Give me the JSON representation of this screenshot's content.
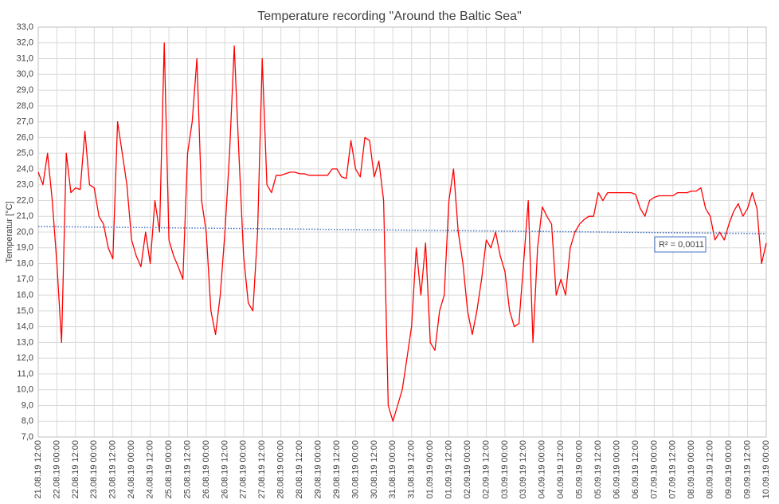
{
  "chart_data": {
    "type": "line",
    "title": "Temperature recording \"Around the Baltic Sea\"",
    "ylabel": "Temperatur [°C]",
    "grid": true,
    "xlim": [
      "21.08.19 12:00",
      "10.09.19 00:00"
    ],
    "xticks": [
      "21.08.19 12:00",
      "22.08.19 00:00",
      "22.08.19 12:00",
      "23.08.19 00:00",
      "23.08.19 12:00",
      "24.08.19 00:00",
      "24.08.19 12:00",
      "25.08.19 00:00",
      "25.08.19 12:00",
      "26.08.19 00:00",
      "26.08.19 12:00",
      "27.08.19 00:00",
      "27.08.19 12:00",
      "28.08.19 00:00",
      "28.08.19 12:00",
      "29.08.19 00:00",
      "29.08.19 12:00",
      "30.08.19 00:00",
      "30.08.19 12:00",
      "31.08.19 00:00",
      "31.08.19 12:00",
      "01.09.19 00:00",
      "01.09.19 12:00",
      "02.09.19 00:00",
      "02.09.19 12:00",
      "03.09.19 00:00",
      "03.09.19 12:00",
      "04.09.19 00:00",
      "04.09.19 12:00",
      "05.09.19 00:00",
      "05.09.19 12:00",
      "06.09.19 00:00",
      "06.09.19 12:00",
      "07.09.19 00:00",
      "07.09.19 12:00",
      "08.09.19 00:00",
      "08.09.19 12:00",
      "09.09.19 00:00",
      "09.09.19 12:00",
      "10.09.19 00:00"
    ],
    "ylim": [
      7,
      33
    ],
    "yticks": [
      {
        "value": 7,
        "label": "7,0"
      },
      {
        "value": 8,
        "label": "8,0"
      },
      {
        "value": 9,
        "label": "9,0"
      },
      {
        "value": 10,
        "label": "10,0"
      },
      {
        "value": 11,
        "label": "11,0"
      },
      {
        "value": 12,
        "label": "12,0"
      },
      {
        "value": 13,
        "label": "13,0"
      },
      {
        "value": 14,
        "label": "14,0"
      },
      {
        "value": 15,
        "label": "15,0"
      },
      {
        "value": 16,
        "label": "16,0"
      },
      {
        "value": 17,
        "label": "17,0"
      },
      {
        "value": 18,
        "label": "18,0"
      },
      {
        "value": 19,
        "label": "19,0"
      },
      {
        "value": 20,
        "label": "20,0"
      },
      {
        "value": 21,
        "label": "21,0"
      },
      {
        "value": 22,
        "label": "22,0"
      },
      {
        "value": 23,
        "label": "23,0"
      },
      {
        "value": 24,
        "label": "24,0"
      },
      {
        "value": 25,
        "label": "25,0"
      },
      {
        "value": 26,
        "label": "26,0"
      },
      {
        "value": 27,
        "label": "27,0"
      },
      {
        "value": 28,
        "label": "28,0"
      },
      {
        "value": 29,
        "label": "29,0"
      },
      {
        "value": 30,
        "label": "30,0"
      },
      {
        "value": 31,
        "label": "31,0"
      },
      {
        "value": 32,
        "label": "32,0"
      },
      {
        "value": 33,
        "label": "33,0"
      }
    ],
    "x": [
      "21.08.19 12:00",
      "21.08.19 15:00",
      "21.08.19 18:00",
      "21.08.19 21:00",
      "22.08.19 00:00",
      "22.08.19 03:00",
      "22.08.19 06:00",
      "22.08.19 09:00",
      "22.08.19 12:00",
      "22.08.19 15:00",
      "22.08.19 18:00",
      "22.08.19 21:00",
      "23.08.19 00:00",
      "23.08.19 03:00",
      "23.08.19 06:00",
      "23.08.19 09:00",
      "23.08.19 12:00",
      "23.08.19 15:00",
      "23.08.19 18:00",
      "23.08.19 21:00",
      "24.08.19 00:00",
      "24.08.19 03:00",
      "24.08.19 06:00",
      "24.08.19 09:00",
      "24.08.19 12:00",
      "24.08.19 15:00",
      "24.08.19 18:00",
      "24.08.19 21:00",
      "25.08.19 00:00",
      "25.08.19 03:00",
      "25.08.19 06:00",
      "25.08.19 09:00",
      "25.08.19 12:00",
      "25.08.19 15:00",
      "25.08.19 18:00",
      "25.08.19 21:00",
      "26.08.19 00:00",
      "26.08.19 03:00",
      "26.08.19 06:00",
      "26.08.19 09:00",
      "26.08.19 12:00",
      "26.08.19 15:00",
      "26.08.19 18:00",
      "26.08.19 21:00",
      "27.08.19 00:00",
      "27.08.19 03:00",
      "27.08.19 06:00",
      "27.08.19 09:00",
      "27.08.19 12:00",
      "27.08.19 15:00",
      "27.08.19 18:00",
      "27.08.19 21:00",
      "28.08.19 00:00",
      "28.08.19 03:00",
      "28.08.19 06:00",
      "28.08.19 09:00",
      "28.08.19 12:00",
      "28.08.19 15:00",
      "28.08.19 18:00",
      "28.08.19 21:00",
      "29.08.19 00:00",
      "29.08.19 03:00",
      "29.08.19 06:00",
      "29.08.19 09:00",
      "29.08.19 12:00",
      "29.08.19 15:00",
      "29.08.19 18:00",
      "29.08.19 21:00",
      "30.08.19 00:00",
      "30.08.19 03:00",
      "30.08.19 06:00",
      "30.08.19 09:00",
      "30.08.19 12:00",
      "30.08.19 15:00",
      "30.08.19 18:00",
      "30.08.19 21:00",
      "31.08.19 00:00",
      "31.08.19 03:00",
      "31.08.19 06:00",
      "31.08.19 09:00",
      "31.08.19 12:00",
      "31.08.19 15:00",
      "31.08.19 18:00",
      "31.08.19 21:00",
      "01.09.19 00:00",
      "01.09.19 03:00",
      "01.09.19 06:00",
      "01.09.19 09:00",
      "01.09.19 12:00",
      "01.09.19 15:00",
      "01.09.19 18:00",
      "01.09.19 21:00",
      "02.09.19 00:00",
      "02.09.19 03:00",
      "02.09.19 06:00",
      "02.09.19 09:00",
      "02.09.19 12:00",
      "02.09.19 15:00",
      "02.09.19 18:00",
      "02.09.19 21:00",
      "03.09.19 00:00",
      "03.09.19 03:00",
      "03.09.19 06:00",
      "03.09.19 09:00",
      "03.09.19 12:00",
      "03.09.19 15:00",
      "03.09.19 18:00",
      "03.09.19 21:00",
      "04.09.19 00:00",
      "04.09.19 03:00",
      "04.09.19 06:00",
      "04.09.19 09:00",
      "04.09.19 12:00",
      "04.09.19 15:00",
      "04.09.19 18:00",
      "04.09.19 21:00",
      "05.09.19 00:00",
      "05.09.19 03:00",
      "05.09.19 06:00",
      "05.09.19 09:00",
      "05.09.19 12:00",
      "05.09.19 15:00",
      "05.09.19 18:00",
      "05.09.19 21:00",
      "06.09.19 00:00",
      "06.09.19 03:00",
      "06.09.19 06:00",
      "06.09.19 09:00",
      "06.09.19 12:00",
      "06.09.19 15:00",
      "06.09.19 18:00",
      "06.09.19 21:00",
      "07.09.19 00:00",
      "07.09.19 03:00",
      "07.09.19 06:00",
      "07.09.19 09:00",
      "07.09.19 12:00",
      "07.09.19 15:00",
      "07.09.19 18:00",
      "07.09.19 21:00",
      "08.09.19 00:00",
      "08.09.19 03:00",
      "08.09.19 06:00",
      "08.09.19 09:00",
      "08.09.19 12:00",
      "08.09.19 15:00",
      "08.09.19 18:00",
      "08.09.19 21:00",
      "09.09.19 00:00",
      "09.09.19 03:00",
      "09.09.19 06:00",
      "09.09.19 09:00",
      "09.09.19 12:00",
      "09.09.19 15:00",
      "09.09.19 18:00",
      "09.09.19 21:00",
      "10.09.19 00:00"
    ],
    "series": [
      {
        "color": "#ff0000",
        "values": [
          23.8,
          23.0,
          25,
          22,
          18,
          13,
          25,
          22.5,
          22.8,
          22.7,
          26.4,
          23,
          22.8,
          21,
          20.5,
          19,
          18.3,
          27,
          25,
          23,
          19.5,
          18.5,
          17.8,
          20,
          18,
          22,
          20,
          32,
          19.5,
          18.5,
          17.8,
          17,
          25,
          27,
          31,
          22,
          20,
          15,
          13.5,
          16,
          20,
          25,
          31.8,
          25,
          18.5,
          15.5,
          15,
          20,
          31,
          23,
          22.5,
          23.6,
          23.6,
          23.7,
          23.8,
          23.8,
          23.7,
          23.7,
          23.6,
          23.6,
          23.6,
          23.6,
          23.6,
          24,
          24,
          23.5,
          23.4,
          25.8,
          24,
          23.5,
          26,
          25.8,
          23.5,
          24.5,
          22,
          9,
          8,
          9,
          10,
          12,
          14,
          19,
          16,
          19.3,
          13,
          12.5,
          15,
          16,
          22,
          24,
          20,
          18,
          15,
          13.5,
          15,
          17,
          19.5,
          19,
          20,
          18.5,
          17.5,
          15,
          14,
          14.2,
          18,
          22,
          13,
          19,
          21.6,
          21,
          20.5,
          16,
          17,
          16,
          19,
          20,
          20.5,
          20.8,
          21,
          21,
          22.5,
          22,
          22.5,
          22.5,
          22.5,
          22.5,
          22.5,
          22.5,
          22.4,
          21.5,
          21,
          22,
          22.2,
          22.3,
          22.3,
          22.3,
          22.3,
          22.5,
          22.5,
          22.5,
          22.6,
          22.6,
          22.8,
          21.5,
          21,
          19.5,
          20,
          19.5,
          20.5,
          21.3,
          21.8,
          21,
          21.5,
          22.5,
          21.5,
          18,
          19.3
        ]
      }
    ],
    "trendline": {
      "color": "#4472c4",
      "x": [
        "21.08.19 12:00",
        "10.09.19 00:00"
      ],
      "values": [
        20.35,
        19.9
      ],
      "label": "R² = 0,0011"
    }
  }
}
